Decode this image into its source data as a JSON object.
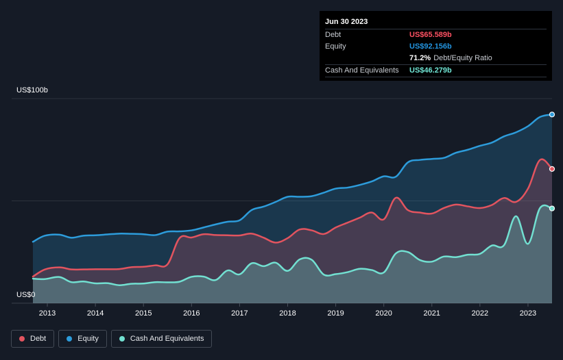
{
  "tooltip": {
    "date": "Jun 30 2023",
    "debt_label": "Debt",
    "debt_value": "US$65.589b",
    "equity_label": "Equity",
    "equity_value": "US$92.156b",
    "ratio_value": "71.2%",
    "ratio_label": "Debt/Equity Ratio",
    "cash_label": "Cash And Equivalents",
    "cash_value": "US$46.279b"
  },
  "legend": {
    "debt": "Debt",
    "equity": "Equity",
    "cash": "Cash And Equivalents"
  },
  "colors": {
    "debt": "#e2545f",
    "equity": "#2d9cdb",
    "cash": "#72e0d1",
    "debt_text": "#ff5263",
    "equity_text": "#2394df",
    "cash_text": "#71e7d6"
  },
  "chart_data": {
    "type": "area",
    "title": "",
    "ylabel_top": "US$100b",
    "ylabel_bottom": "US$0",
    "ylim": [
      0,
      100
    ],
    "xlim": [
      2012.7,
      2023.5
    ],
    "x_ticks": [
      2013,
      2014,
      2015,
      2016,
      2017,
      2018,
      2019,
      2020,
      2021,
      2022,
      2023
    ],
    "x_tick_labels": [
      "2013",
      "2014",
      "2015",
      "2016",
      "2017",
      "2018",
      "2019",
      "2020",
      "2021",
      "2022",
      "2023"
    ],
    "series": [
      {
        "name": "Equity",
        "key": "equity",
        "points": [
          [
            2012.7,
            30
          ],
          [
            2012.95,
            33
          ],
          [
            2013.25,
            33.5
          ],
          [
            2013.5,
            32
          ],
          [
            2013.75,
            33
          ],
          [
            2014.0,
            33.2
          ],
          [
            2014.25,
            33.6
          ],
          [
            2014.5,
            34
          ],
          [
            2014.75,
            33.9
          ],
          [
            2015.0,
            33.7
          ],
          [
            2015.25,
            33.3
          ],
          [
            2015.5,
            35
          ],
          [
            2015.75,
            35.1
          ],
          [
            2016.0,
            35.6
          ],
          [
            2016.25,
            37
          ],
          [
            2016.5,
            38.5
          ],
          [
            2016.75,
            39.8
          ],
          [
            2017.0,
            40.5
          ],
          [
            2017.25,
            45.5
          ],
          [
            2017.5,
            47.2
          ],
          [
            2017.75,
            49.5
          ],
          [
            2018.0,
            52
          ],
          [
            2018.25,
            52
          ],
          [
            2018.5,
            52.3
          ],
          [
            2018.75,
            54
          ],
          [
            2019.0,
            56
          ],
          [
            2019.25,
            56.5
          ],
          [
            2019.5,
            57.8
          ],
          [
            2019.75,
            59.5
          ],
          [
            2020.0,
            62
          ],
          [
            2020.25,
            61.8
          ],
          [
            2020.5,
            68.8
          ],
          [
            2020.75,
            70
          ],
          [
            2021.0,
            70.5
          ],
          [
            2021.25,
            71
          ],
          [
            2021.5,
            73.5
          ],
          [
            2021.75,
            75
          ],
          [
            2022.0,
            76.9
          ],
          [
            2022.25,
            78.5
          ],
          [
            2022.5,
            81.5
          ],
          [
            2022.75,
            83.5
          ],
          [
            2023.0,
            86.5
          ],
          [
            2023.25,
            91
          ],
          [
            2023.5,
            92.2
          ]
        ]
      },
      {
        "name": "Debt",
        "key": "debt",
        "points": [
          [
            2012.7,
            13
          ],
          [
            2012.95,
            16.5
          ],
          [
            2013.25,
            17.5
          ],
          [
            2013.5,
            16.5
          ],
          [
            2013.75,
            16.5
          ],
          [
            2014.0,
            16.6
          ],
          [
            2014.25,
            16.6
          ],
          [
            2014.5,
            16.7
          ],
          [
            2014.75,
            17.6
          ],
          [
            2015.0,
            17.8
          ],
          [
            2015.25,
            18.5
          ],
          [
            2015.5,
            19
          ],
          [
            2015.75,
            31.8
          ],
          [
            2016.0,
            32.1
          ],
          [
            2016.25,
            33.7
          ],
          [
            2016.5,
            33.3
          ],
          [
            2016.75,
            33.2
          ],
          [
            2017.0,
            33.1
          ],
          [
            2017.25,
            34
          ],
          [
            2017.5,
            32
          ],
          [
            2017.75,
            29.6
          ],
          [
            2018.0,
            31.8
          ],
          [
            2018.25,
            36
          ],
          [
            2018.5,
            35.6
          ],
          [
            2018.75,
            33.8
          ],
          [
            2019.0,
            37
          ],
          [
            2019.25,
            39.4
          ],
          [
            2019.5,
            41.8
          ],
          [
            2019.75,
            44.3
          ],
          [
            2020.0,
            41
          ],
          [
            2020.25,
            51.5
          ],
          [
            2020.5,
            45.5
          ],
          [
            2020.75,
            44.3
          ],
          [
            2021.0,
            43.8
          ],
          [
            2021.25,
            46.5
          ],
          [
            2021.5,
            48.2
          ],
          [
            2021.75,
            47.3
          ],
          [
            2022.0,
            46.5
          ],
          [
            2022.25,
            48
          ],
          [
            2022.5,
            51.4
          ],
          [
            2022.75,
            49.5
          ],
          [
            2023.0,
            56
          ],
          [
            2023.25,
            70
          ],
          [
            2023.5,
            65.6
          ]
        ]
      },
      {
        "name": "Cash And Equivalents",
        "key": "cash",
        "points": [
          [
            2012.7,
            12
          ],
          [
            2012.95,
            11.8
          ],
          [
            2013.25,
            12.8
          ],
          [
            2013.5,
            10.3
          ],
          [
            2013.75,
            10.6
          ],
          [
            2014.0,
            9.7
          ],
          [
            2014.25,
            9.8
          ],
          [
            2014.5,
            8.8
          ],
          [
            2014.75,
            9.5
          ],
          [
            2015.0,
            9.6
          ],
          [
            2015.25,
            10.3
          ],
          [
            2015.5,
            10.2
          ],
          [
            2015.75,
            10.5
          ],
          [
            2016.0,
            12.9
          ],
          [
            2016.25,
            13
          ],
          [
            2016.5,
            11.3
          ],
          [
            2016.75,
            16
          ],
          [
            2017.0,
            14.1
          ],
          [
            2017.25,
            19.5
          ],
          [
            2017.5,
            18.1
          ],
          [
            2017.75,
            19.8
          ],
          [
            2018.0,
            15.8
          ],
          [
            2018.25,
            21.4
          ],
          [
            2018.5,
            21.2
          ],
          [
            2018.75,
            14
          ],
          [
            2019.0,
            14.2
          ],
          [
            2019.25,
            15.2
          ],
          [
            2019.5,
            16.8
          ],
          [
            2019.75,
            16.2
          ],
          [
            2020.0,
            15
          ],
          [
            2020.25,
            24.3
          ],
          [
            2020.5,
            25
          ],
          [
            2020.75,
            21.1
          ],
          [
            2021.0,
            20.3
          ],
          [
            2021.25,
            22.8
          ],
          [
            2021.5,
            22.5
          ],
          [
            2021.75,
            23.7
          ],
          [
            2022.0,
            24.1
          ],
          [
            2022.25,
            28.2
          ],
          [
            2022.5,
            28.3
          ],
          [
            2022.75,
            42.5
          ],
          [
            2023.0,
            29
          ],
          [
            2023.25,
            46.5
          ],
          [
            2023.5,
            46.3
          ]
        ]
      }
    ]
  }
}
